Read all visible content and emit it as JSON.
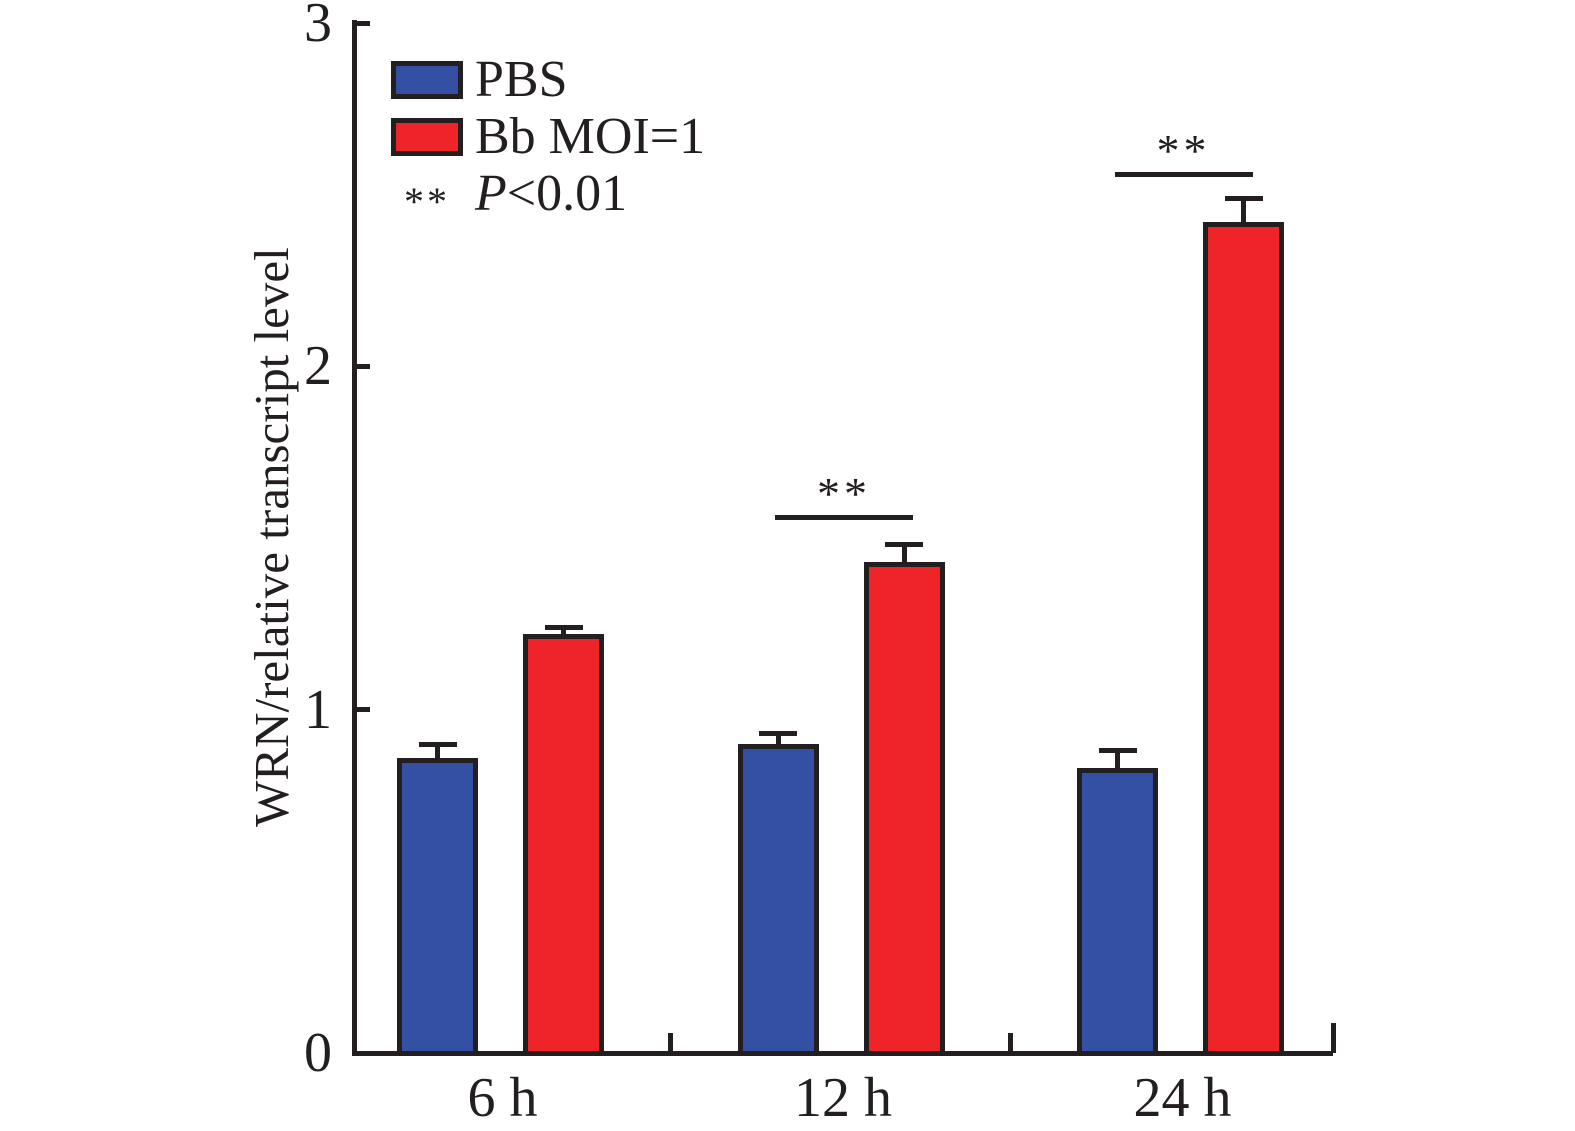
{
  "figure": {
    "background": "#FFFFFF"
  },
  "legend": {
    "items": [
      {
        "label": "PBS",
        "color": "#3450A4"
      },
      {
        "label": "Bb MOI=1",
        "color": "#EE2428"
      }
    ],
    "note": {
      "marker": "**",
      "p": "P",
      "rest": "<0.01"
    }
  },
  "chart_data": {
    "type": "bar",
    "title": "",
    "categories": [
      "6 h",
      "12 h",
      "24 h"
    ],
    "series": [
      {
        "name": "PBS",
        "color": "#3450A4",
        "values": [
          0.86,
          0.9,
          0.83
        ],
        "errors": [
          0.04,
          0.03,
          0.05
        ]
      },
      {
        "name": "Bb MOI=1",
        "color": "#EE2428",
        "values": [
          1.22,
          1.43,
          2.42
        ],
        "errors": [
          0.02,
          0.05,
          0.07
        ]
      }
    ],
    "xlabel": "",
    "ylabel": "WRN/relative transcript level",
    "ylim": [
      0,
      3
    ],
    "yticks": [
      0,
      1,
      2,
      3
    ],
    "grid": false,
    "legend_position": "top-left",
    "bar_border_color": "#231F20",
    "annotations": [
      {
        "category": "12 h",
        "label": "**",
        "y": 1.56
      },
      {
        "category": "24 h",
        "label": "**",
        "y": 2.56
      }
    ],
    "significance_note": "** P<0.01"
  }
}
